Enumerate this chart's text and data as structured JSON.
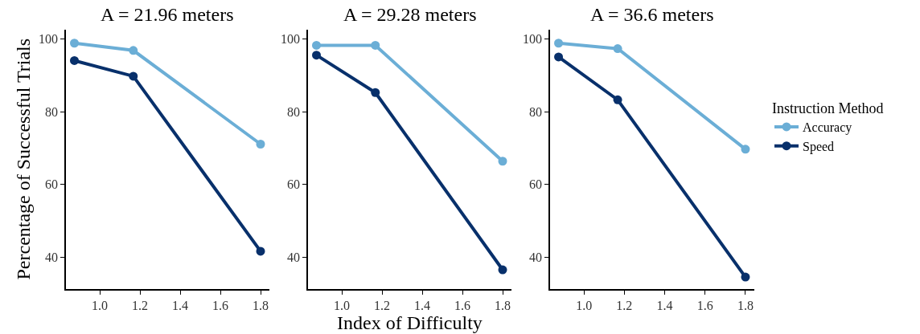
{
  "chart_data": [
    {
      "type": "line",
      "title": "A = 21.96 meters",
      "ylabel": "Percentage of Successful Trials",
      "x": [
        0.874,
        1.167,
        1.8
      ],
      "xlim": [
        0.832,
        1.844
      ],
      "xticks": [
        {
          "value": 1.0,
          "label": "1.0"
        },
        {
          "value": 1.2,
          "label": "1.2"
        },
        {
          "value": 1.4,
          "label": "1.4"
        },
        {
          "value": 1.6,
          "label": "1.6"
        },
        {
          "value": 1.8,
          "label": "1.8"
        }
      ],
      "ylim": [
        31.2,
        102.6
      ],
      "yticks": [
        40,
        60,
        80,
        100
      ],
      "marker": "circle",
      "line_style": "solid",
      "series": [
        {
          "color": "#6baed6",
          "values": [
            98.9,
            96.9,
            71.1
          ]
        },
        {
          "color": "#08306b",
          "values": [
            94.1,
            89.8,
            41.6
          ]
        }
      ]
    },
    {
      "type": "line",
      "title": "A = 29.28 meters",
      "xlabel": "Index of Difficulty",
      "x": [
        0.874,
        1.167,
        1.8
      ],
      "xlim": [
        0.832,
        1.844
      ],
      "xticks": [
        {
          "value": 1.0,
          "label": "1.0"
        },
        {
          "value": 1.2,
          "label": "1.2"
        },
        {
          "value": 1.4,
          "label": "1.4"
        },
        {
          "value": 1.6,
          "label": "1.6"
        },
        {
          "value": 1.8,
          "label": "1.8"
        }
      ],
      "ylim": [
        31.2,
        102.6
      ],
      "yticks": [
        40,
        60,
        80,
        100
      ],
      "marker": "circle",
      "line_style": "solid",
      "series": [
        {
          "color": "#6baed6",
          "values": [
            98.3,
            98.3,
            66.4
          ]
        },
        {
          "color": "#08306b",
          "values": [
            95.6,
            85.3,
            36.5
          ]
        }
      ]
    },
    {
      "type": "line",
      "title": "A = 36.6 meters",
      "legend_title": "Instruction Method",
      "x": [
        0.874,
        1.167,
        1.8
      ],
      "xlim": [
        0.832,
        1.844
      ],
      "xticks": [
        {
          "value": 1.0,
          "label": "1.0"
        },
        {
          "value": 1.2,
          "label": "1.2"
        },
        {
          "value": 1.4,
          "label": "1.4"
        },
        {
          "value": 1.6,
          "label": "1.6"
        },
        {
          "value": 1.8,
          "label": "1.8"
        }
      ],
      "ylim": [
        31.2,
        102.6
      ],
      "yticks": [
        40,
        60,
        80,
        100
      ],
      "legend": "right",
      "marker": "circle",
      "line_style": "solid",
      "series": [
        {
          "name": "Accuracy",
          "color": "#6baed6",
          "values": [
            98.9,
            97.4,
            69.7
          ]
        },
        {
          "name": "Speed",
          "color": "#08306b",
          "values": [
            95.1,
            83.3,
            34.5
          ]
        }
      ]
    }
  ]
}
